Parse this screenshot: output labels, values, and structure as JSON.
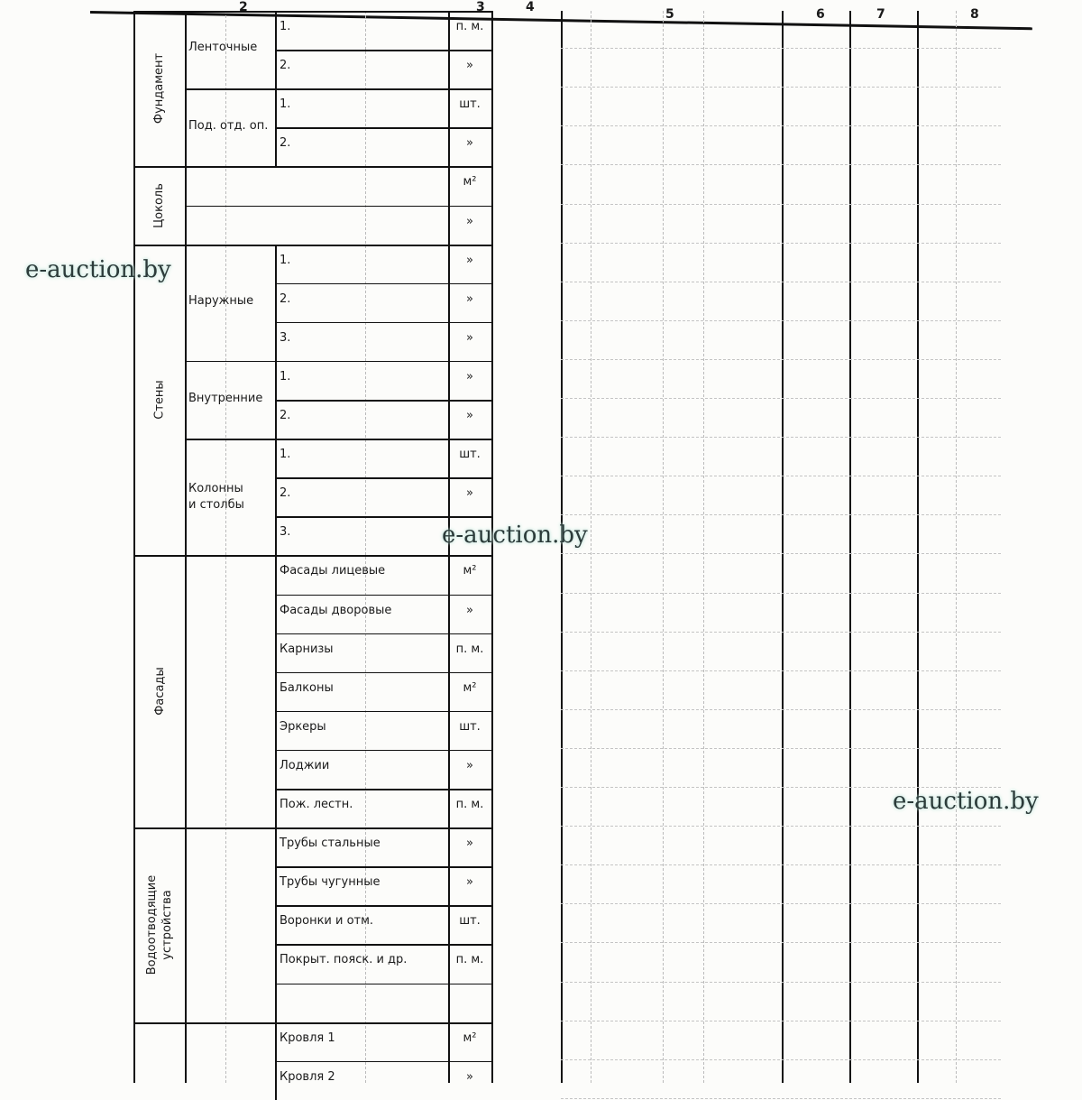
{
  "header_numbers": [
    "2",
    "3",
    "4",
    "5",
    "6",
    "7",
    "8"
  ],
  "groups": [
    {
      "label": "Фундамент",
      "subgroups": [
        {
          "label": "Ленточные",
          "rows": [
            {
              "item": "1.",
              "unit": "п. м."
            },
            {
              "item": "2.",
              "unit": "»"
            }
          ]
        },
        {
          "label": "Под. отд. оп.",
          "rows": [
            {
              "item": "1.",
              "unit": "шт."
            },
            {
              "item": "2.",
              "unit": "»"
            }
          ]
        }
      ]
    },
    {
      "label": "Цоколь",
      "merged": true,
      "subgroups": [
        {
          "label": "",
          "rows": [
            {
              "item": "",
              "unit": "м²"
            },
            {
              "item": "",
              "unit": "»"
            }
          ]
        }
      ]
    },
    {
      "label": "Стены",
      "subgroups": [
        {
          "label": "Наружные",
          "rows": [
            {
              "item": "1.",
              "unit": "»"
            },
            {
              "item": "2.",
              "unit": "»"
            },
            {
              "item": "3.",
              "unit": "»"
            }
          ]
        },
        {
          "label": "Внутренние",
          "rows": [
            {
              "item": "1.",
              "unit": "»"
            },
            {
              "item": "2.",
              "unit": "»"
            }
          ]
        },
        {
          "label": "Колонны\nи столбы",
          "rows": [
            {
              "item": "1.",
              "unit": "шт."
            },
            {
              "item": "2.",
              "unit": "»"
            },
            {
              "item": "3.",
              "unit": ""
            }
          ]
        }
      ]
    },
    {
      "label": "Фасады",
      "subgroups": [
        {
          "label": "",
          "rows": [
            {
              "item": "Фасады лицевые",
              "unit": "м²"
            },
            {
              "item": "Фасады дворовые",
              "unit": "»"
            },
            {
              "item": "Карнизы",
              "unit": "п. м."
            },
            {
              "item": "Балконы",
              "unit": "м²"
            },
            {
              "item": "Эркеры",
              "unit": "шт."
            },
            {
              "item": "Лоджии",
              "unit": "»"
            },
            {
              "item": "Пож. лестн.",
              "unit": "п. м."
            }
          ]
        }
      ]
    },
    {
      "label": "Водоотводящие\nустройства",
      "subgroups": [
        {
          "label": "",
          "rows": [
            {
              "item": "Трубы стальные",
              "unit": "»"
            },
            {
              "item": "Трубы чугунные",
              "unit": "»"
            },
            {
              "item": "Воронки и отм.",
              "unit": "шт."
            },
            {
              "item": "Покрыт. пояск. и др.",
              "unit": "п. м."
            },
            {
              "item": "",
              "unit": ""
            }
          ]
        }
      ]
    },
    {
      "label": "",
      "subgroups": [
        {
          "label": "",
          "rows": [
            {
              "item": "Кровля 1",
              "unit": "м²"
            },
            {
              "item": "Кровля 2",
              "unit": "»"
            }
          ]
        }
      ]
    }
  ],
  "watermark": "e-auction.by"
}
